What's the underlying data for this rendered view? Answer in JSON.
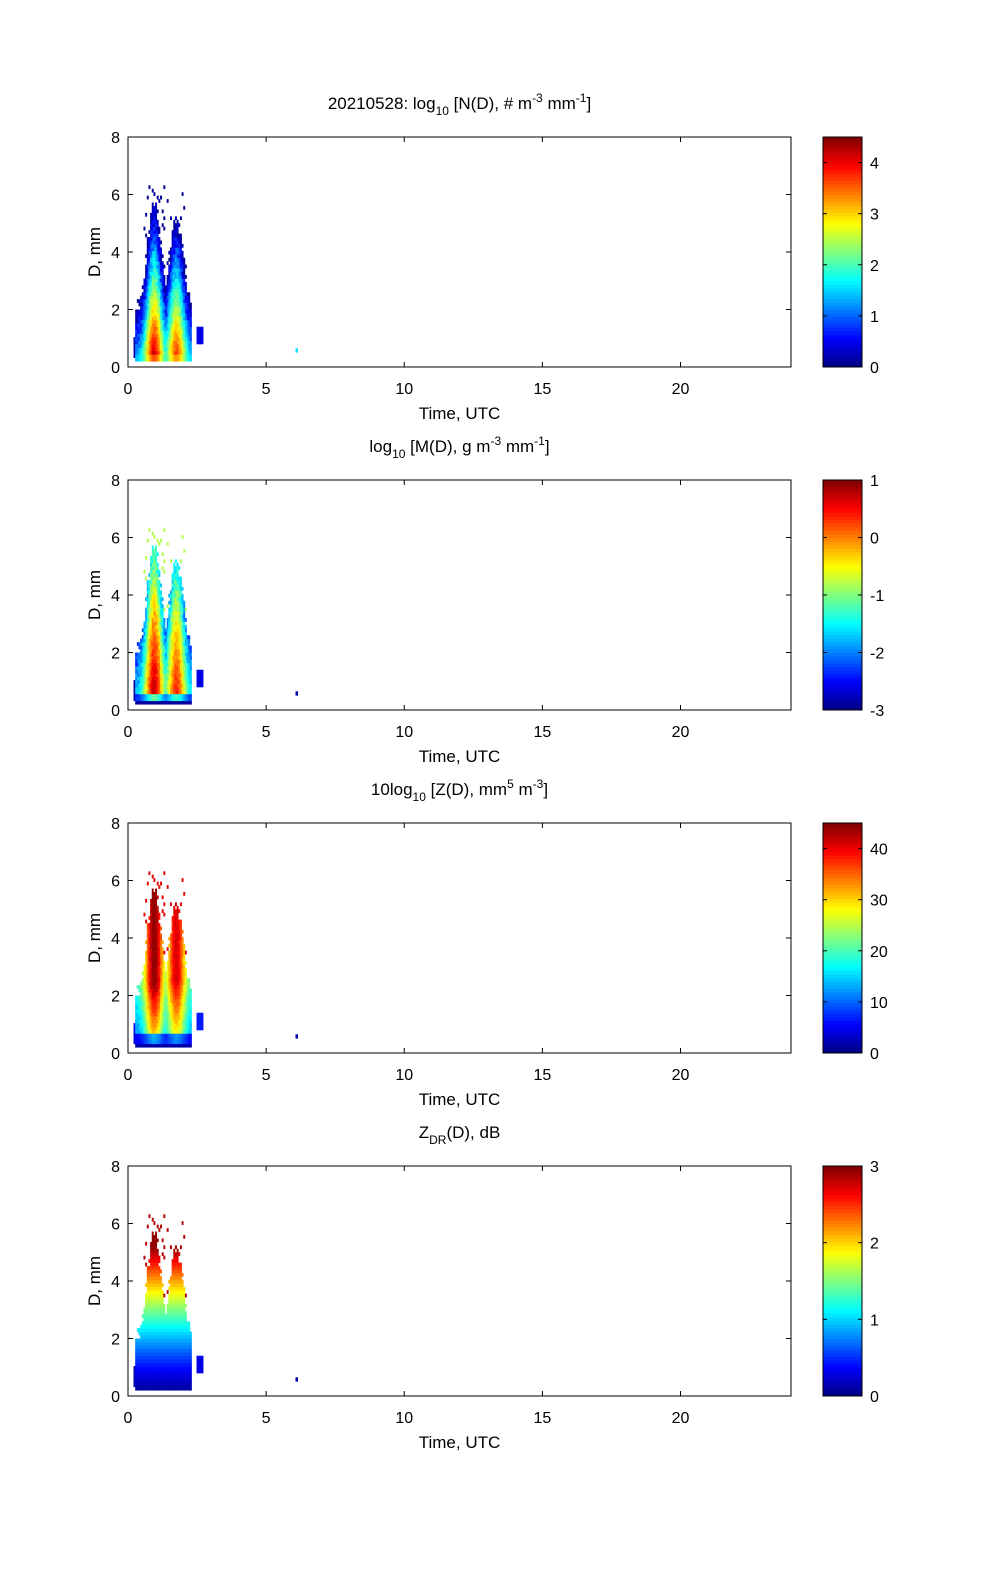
{
  "chart_data": [
    {
      "type": "heatmap",
      "title": "20210528: log10[N(D), # m-3 mm-1]",
      "title_parts": {
        "pre": "20210528: log",
        "sub": "10",
        "mid": " [N(D), # m",
        "sup1": "-3",
        "mid2": " mm",
        "sup2": "-1",
        "post": "]"
      },
      "xlabel": "Time, UTC",
      "ylabel": "D, mm",
      "xlim": [
        0,
        24
      ],
      "ylim": [
        0,
        8
      ],
      "xticks": [
        "0",
        "5",
        "10",
        "15",
        "20"
      ],
      "xtick_values": [
        0,
        5,
        10,
        15,
        20
      ],
      "yticks": [
        "0",
        "2",
        "4",
        "6",
        "8"
      ],
      "ytick_values": [
        0,
        2,
        4,
        6,
        8
      ],
      "colorbar": {
        "min": 0,
        "max": 4.5,
        "ticks": [
          "0",
          "1",
          "2",
          "3",
          "4"
        ],
        "tick_values": [
          0,
          1,
          2,
          3,
          4
        ],
        "colormap": "jet"
      },
      "field": "N",
      "time_range_utc": [
        0.3,
        2.7
      ],
      "max_diameter_mm": 6.2,
      "isolated_point": {
        "time": 6.1,
        "diameter": 0.5
      }
    },
    {
      "type": "heatmap",
      "title": "log10[M(D), g m-3 mm-1]",
      "title_parts": {
        "pre": "log",
        "sub": "10",
        "mid": " [M(D), g m",
        "sup1": "-3",
        "mid2": " mm",
        "sup2": "-1",
        "post": "]"
      },
      "xlabel": "Time, UTC",
      "ylabel": "D, mm",
      "xlim": [
        0,
        24
      ],
      "ylim": [
        0,
        8
      ],
      "xticks": [
        "0",
        "5",
        "10",
        "15",
        "20"
      ],
      "xtick_values": [
        0,
        5,
        10,
        15,
        20
      ],
      "yticks": [
        "0",
        "2",
        "4",
        "6",
        "8"
      ],
      "ytick_values": [
        0,
        2,
        4,
        6,
        8
      ],
      "colorbar": {
        "min": -3,
        "max": 1,
        "ticks": [
          "-3",
          "-2",
          "-1",
          "0",
          "1"
        ],
        "tick_values": [
          -3,
          -2,
          -1,
          0,
          1
        ],
        "colormap": "jet"
      },
      "field": "M",
      "time_range_utc": [
        0.3,
        2.7
      ],
      "max_diameter_mm": 6.2,
      "isolated_point": {
        "time": 6.1,
        "diameter": 0.5
      }
    },
    {
      "type": "heatmap",
      "title": "10log10[Z(D), mm5 m-3]",
      "title_parts": {
        "pre": "10log",
        "sub": "10",
        "mid": " [Z(D),  mm",
        "sup1": "5",
        "mid2": " m",
        "sup2": "-3",
        "post": "]"
      },
      "xlabel": "Time, UTC",
      "ylabel": "D, mm",
      "xlim": [
        0,
        24
      ],
      "ylim": [
        0,
        8
      ],
      "xticks": [
        "0",
        "5",
        "10",
        "15",
        "20"
      ],
      "xtick_values": [
        0,
        5,
        10,
        15,
        20
      ],
      "yticks": [
        "0",
        "2",
        "4",
        "6",
        "8"
      ],
      "ytick_values": [
        0,
        2,
        4,
        6,
        8
      ],
      "colorbar": {
        "min": 0,
        "max": 45,
        "ticks": [
          "0",
          "10",
          "20",
          "30",
          "40"
        ],
        "tick_values": [
          0,
          10,
          20,
          30,
          40
        ],
        "colormap": "jet"
      },
      "field": "Z",
      "time_range_utc": [
        0.3,
        2.7
      ],
      "max_diameter_mm": 6.2,
      "isolated_point": {
        "time": 6.1,
        "diameter": 0.5
      }
    },
    {
      "type": "heatmap",
      "title": "ZDR(D), dB",
      "title_parts": {
        "pre": "Z",
        "sub": "DR",
        "mid": "(D), dB",
        "sup1": "",
        "mid2": "",
        "sup2": "",
        "post": ""
      },
      "xlabel": "Time, UTC",
      "ylabel": "D, mm",
      "xlim": [
        0,
        24
      ],
      "ylim": [
        0,
        8
      ],
      "xticks": [
        "0",
        "5",
        "10",
        "15",
        "20"
      ],
      "xtick_values": [
        0,
        5,
        10,
        15,
        20
      ],
      "yticks": [
        "0",
        "2",
        "4",
        "6",
        "8"
      ],
      "ytick_values": [
        0,
        2,
        4,
        6,
        8
      ],
      "colorbar": {
        "min": 0,
        "max": 3,
        "ticks": [
          "0",
          "1",
          "2",
          "3"
        ],
        "tick_values": [
          0,
          1,
          2,
          3
        ],
        "colormap": "jet"
      },
      "field": "ZDR",
      "time_range_utc": [
        0.3,
        2.7
      ],
      "max_diameter_mm": 6.2,
      "isolated_point": {
        "time": 6.1,
        "diameter": 0.5
      }
    }
  ]
}
